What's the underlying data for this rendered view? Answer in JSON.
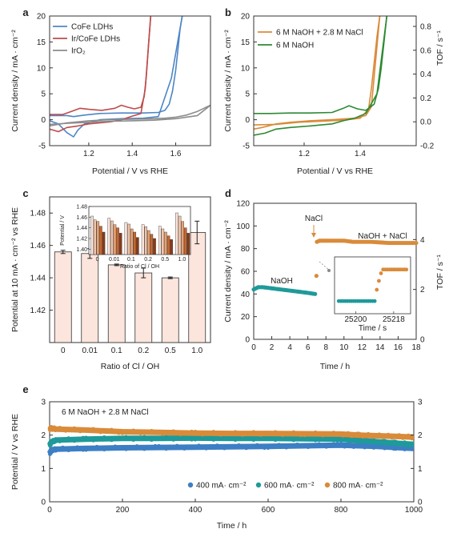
{
  "chart_data": [
    {
      "panel": "a",
      "type": "line",
      "xlabel": "Potential / V vs RHE",
      "ylabel": "Current density / mA · cm⁻²",
      "xlim": [
        1.02,
        1.76
      ],
      "ylim": [
        -5,
        20
      ],
      "xticks": [
        1.2,
        1.4,
        1.6
      ],
      "yticks": [
        -5,
        0,
        5,
        10,
        15,
        20
      ],
      "legend_position": "top-left",
      "series": [
        {
          "name": "CoFe LDHs",
          "color": "#4d86c6",
          "x": [
            1.02,
            1.1,
            1.13,
            1.18,
            1.25,
            1.35,
            1.45,
            1.52,
            1.55,
            1.57,
            1.585,
            1.6,
            1.61,
            1.62,
            1.63
          ],
          "y": [
            0.8,
            0.8,
            0.6,
            0.9,
            1.2,
            1.3,
            1.3,
            1.4,
            1.8,
            3.0,
            5.5,
            9.5,
            13.5,
            17.5,
            20
          ]
        },
        {
          "name": "CoFe LDHs return",
          "color": "#4d86c6",
          "x": [
            1.63,
            1.58,
            1.52,
            1.45,
            1.35,
            1.25,
            1.18,
            1.15,
            1.13,
            1.1,
            1.06,
            1.02
          ],
          "y": [
            20,
            8.0,
            0.6,
            0.3,
            0.2,
            0.0,
            -0.8,
            -2.0,
            -3.3,
            -2.5,
            -0.8,
            -0.2
          ]
        },
        {
          "name": "Ir/CoFe LDHs",
          "color": "#bf4b4b",
          "x": [
            1.02,
            1.08,
            1.12,
            1.16,
            1.2,
            1.26,
            1.32,
            1.35,
            1.38,
            1.41,
            1.44,
            1.455,
            1.465,
            1.475,
            1.485
          ],
          "y": [
            1.0,
            1.0,
            1.6,
            2.2,
            2.0,
            1.8,
            2.2,
            2.8,
            2.4,
            2.1,
            2.4,
            4.5,
            8.5,
            14.5,
            20
          ]
        },
        {
          "name": "Ir/CoFe LDHs return",
          "color": "#bf4b4b",
          "x": [
            1.485,
            1.46,
            1.44,
            1.4,
            1.35,
            1.3,
            1.2,
            1.15,
            1.1,
            1.06,
            1.02
          ],
          "y": [
            20,
            6.0,
            1.2,
            0.7,
            0.0,
            -0.4,
            -0.8,
            -1.2,
            -1.5,
            -2.3,
            -1.8
          ]
        },
        {
          "name": "IrO2",
          "color": "#8c8c8c",
          "x": [
            1.02,
            1.1,
            1.2,
            1.3,
            1.4,
            1.5,
            1.55,
            1.6,
            1.65,
            1.7,
            1.74,
            1.76
          ],
          "y": [
            -1.2,
            -0.6,
            -0.2,
            0.0,
            0.1,
            0.2,
            0.3,
            0.5,
            0.9,
            1.6,
            2.4,
            2.8
          ]
        },
        {
          "name": "IrO2 return",
          "color": "#8c8c8c",
          "x": [
            1.76,
            1.7,
            1.6,
            1.5,
            1.4,
            1.3,
            1.2,
            1.1,
            1.02
          ],
          "y": [
            2.8,
            0.8,
            0.2,
            -0.1,
            -0.2,
            -0.3,
            -0.5,
            -0.7,
            -0.9
          ]
        }
      ]
    },
    {
      "panel": "b",
      "type": "line",
      "xlabel": "Potential / V vs RHE",
      "ylabel": "Current density / mA · cm⁻²",
      "ylabel_right": "TOF / s⁻¹",
      "xlim": [
        1.02,
        1.6
      ],
      "ylim": [
        -5,
        20
      ],
      "xticks": [
        1.2,
        1.4
      ],
      "yticks": [
        -5,
        0,
        5,
        10,
        15,
        20
      ],
      "right_ticks": [
        -0.2,
        0.0,
        0.2,
        0.4,
        0.6,
        0.8
      ],
      "legend_position": "top-left",
      "series": [
        {
          "name": "6 M NaOH + 2.8 M NaCl",
          "color": "#d98b3a",
          "x": [
            1.02,
            1.1,
            1.18,
            1.26,
            1.34,
            1.4,
            1.43,
            1.44,
            1.45,
            1.46,
            1.47
          ],
          "y": [
            -1.0,
            -0.9,
            -0.5,
            -0.3,
            -0.1,
            0.3,
            2.0,
            6.0,
            11.0,
            16.0,
            20
          ]
        },
        {
          "name": "6 M NaOH + 2.8 M NaCl return",
          "color": "#d98b3a",
          "x": [
            1.47,
            1.44,
            1.42,
            1.38,
            1.3,
            1.22,
            1.15,
            1.1,
            1.05,
            1.02
          ],
          "y": [
            20,
            2.5,
            0.8,
            0.3,
            0.0,
            -0.2,
            -0.5,
            -0.8,
            -1.5,
            -1.8
          ]
        },
        {
          "name": "6 M NaOH",
          "color": "#2d8a32",
          "x": [
            1.02,
            1.08,
            1.15,
            1.22,
            1.3,
            1.34,
            1.36,
            1.39,
            1.42,
            1.45,
            1.465,
            1.475,
            1.485,
            1.495
          ],
          "y": [
            1.2,
            1.2,
            1.3,
            1.3,
            1.4,
            2.2,
            2.7,
            2.1,
            1.8,
            3.0,
            6.0,
            10.0,
            15.0,
            20
          ]
        },
        {
          "name": "6 M NaOH return",
          "color": "#2d8a32",
          "x": [
            1.495,
            1.46,
            1.42,
            1.38,
            1.34,
            1.3,
            1.22,
            1.15,
            1.1,
            1.06,
            1.02
          ],
          "y": [
            20,
            5.0,
            1.2,
            0.3,
            -0.2,
            -0.8,
            -1.2,
            -1.5,
            -1.8,
            -2.6,
            -3.0
          ]
        }
      ]
    },
    {
      "panel": "c",
      "type": "bar",
      "xlabel": "Ratio of Cl / OH",
      "ylabel": "Potential at 10 mA · cm⁻² vs RHE",
      "categories": [
        "0",
        "0.01",
        "0.1",
        "0.2",
        "0.5",
        "1.0"
      ],
      "values": [
        1.456,
        1.455,
        1.448,
        1.443,
        1.44,
        1.468
      ],
      "errors": [
        0.001,
        0.003,
        0.0005,
        0.003,
        0.0005,
        0.007
      ],
      "ylim": [
        1.4,
        1.49
      ],
      "yticks": [
        1.42,
        1.44,
        1.46,
        1.48
      ],
      "bar_color": "#fbe5dc",
      "inset": {
        "xlabel": "Ratio of Cl / OH",
        "ylabel": "Potential / V",
        "categories": [
          "0",
          "0.01",
          "0.1",
          "0.2",
          "0.5",
          "1.0"
        ],
        "ylim": [
          1.39,
          1.48
        ],
        "yticks": [
          1.4,
          1.42,
          1.44,
          1.46,
          1.48
        ],
        "series_colors": [
          "#fbe5dc",
          "#f2c5aa",
          "#e8a172",
          "#c8662e",
          "#8a3a17"
        ],
        "values": [
          [
            1.462,
            1.455,
            1.452,
            1.443,
            1.432
          ],
          [
            1.458,
            1.453,
            1.446,
            1.44,
            1.43
          ],
          [
            1.45,
            1.447,
            1.438,
            1.432,
            1.422
          ],
          [
            1.446,
            1.442,
            1.435,
            1.428,
            1.42
          ],
          [
            1.443,
            1.438,
            1.432,
            1.425,
            1.418
          ],
          [
            1.468,
            1.462,
            1.452,
            1.44,
            1.43
          ]
        ]
      }
    },
    {
      "panel": "d",
      "type": "scatter",
      "xlabel": "Time / h",
      "ylabel": "Current density / mA · cm⁻²",
      "ylabel_right": "TOF / s⁻¹",
      "xlim": [
        0,
        18
      ],
      "ylim": [
        0,
        120
      ],
      "xticks": [
        0,
        2,
        4,
        6,
        8,
        10,
        12,
        14,
        16,
        18
      ],
      "yticks": [
        0,
        20,
        40,
        60,
        80,
        100,
        120
      ],
      "right_ticks": [
        0,
        2,
        4
      ],
      "annotations": [
        "NaOH",
        "NaCl",
        "NaOH + NaCl"
      ],
      "series": [
        {
          "name": "NaOH",
          "color": "#1e9a9a",
          "x": [
            0,
            0.5,
            1,
            2,
            3,
            4,
            5,
            6,
            6.8
          ],
          "y": [
            44,
            46,
            46,
            45,
            44,
            43,
            42,
            41,
            40
          ]
        },
        {
          "name": "NaOH + NaCl",
          "color": "#d98b3a",
          "x": [
            7,
            7.3,
            8,
            9,
            10,
            11,
            12,
            13,
            14,
            15,
            16,
            17,
            18
          ],
          "y": [
            86,
            87,
            87,
            87,
            87,
            86,
            86,
            86,
            85.5,
            85,
            85,
            85,
            85
          ]
        },
        {
          "name": "transition",
          "color": "#d98b3a",
          "x": [
            6.95
          ],
          "y": [
            56
          ]
        }
      ],
      "inset": {
        "xlabel": "Time / s",
        "xticks": [
          25200,
          25218
        ],
        "xlim": [
          25190,
          25226
        ],
        "series": [
          {
            "name": "NaOH",
            "color": "#1e9a9a",
            "x": [
              25192,
              25193,
              25194,
              25195,
              25196,
              25197,
              25198,
              25199,
              25200,
              25201,
              25202,
              25203,
              25204,
              25205,
              25206,
              25207,
              25208,
              25209
            ],
            "y": [
              40,
              40,
              40,
              40,
              40,
              40,
              40,
              40,
              40,
              40,
              40,
              40,
              40,
              40,
              40,
              40,
              40,
              40
            ]
          },
          {
            "name": "NaOH + NaCl",
            "color": "#d98b3a",
            "x": [
              25210,
              25211,
              25212,
              25213,
              25214,
              25215,
              25216,
              25217,
              25218,
              25219,
              25220,
              25221,
              25222,
              25223,
              25224
            ],
            "y": [
              49,
              56,
              62,
              65,
              65,
              65,
              65,
              65,
              65,
              65,
              65,
              65,
              65,
              65,
              65
            ]
          }
        ]
      }
    },
    {
      "panel": "e",
      "type": "line",
      "title": "6 M NaOH + 2.8 M NaCl",
      "xlabel": "Time / h",
      "ylabel": "Potential / V vs RHE",
      "xlim": [
        0,
        1000
      ],
      "ylim": [
        0,
        3
      ],
      "xticks": [
        0,
        200,
        400,
        600,
        800,
        1000
      ],
      "yticks": [
        0,
        1,
        2,
        3
      ],
      "legend_position": "bottom-right",
      "series": [
        {
          "name": "400 mA· cm⁻²",
          "color": "#3d7fc4",
          "x": [
            0,
            5,
            20,
            100,
            200,
            300,
            400,
            500,
            600,
            700,
            800,
            850,
            900,
            950,
            1000
          ],
          "y": [
            1.45,
            1.55,
            1.58,
            1.6,
            1.62,
            1.63,
            1.64,
            1.65,
            1.66,
            1.68,
            1.7,
            1.68,
            1.66,
            1.63,
            1.6
          ]
        },
        {
          "name": "600 mA· cm⁻²",
          "color": "#1e9a9a",
          "x": [
            0,
            5,
            20,
            100,
            200,
            300,
            400,
            500,
            600,
            700,
            800,
            850,
            900,
            950,
            1000
          ],
          "y": [
            1.7,
            1.8,
            1.85,
            1.88,
            1.9,
            1.9,
            1.91,
            1.9,
            1.9,
            1.89,
            1.88,
            1.84,
            1.8,
            1.76,
            1.72
          ]
        },
        {
          "name": "800 mA· cm⁻²",
          "color": "#d98b3a",
          "x": [
            0,
            5,
            20,
            100,
            200,
            300,
            400,
            500,
            600,
            700,
            800,
            850,
            900,
            950,
            1000
          ],
          "y": [
            2.2,
            2.2,
            2.18,
            2.15,
            2.1,
            2.08,
            2.06,
            2.05,
            2.05,
            2.04,
            2.03,
            2.0,
            1.98,
            1.96,
            1.94
          ]
        }
      ]
    }
  ],
  "labels": {
    "a": "a",
    "b": "b",
    "c": "c",
    "d": "d",
    "e": "e",
    "a_ylabel": "Current density / mA · cm⁻²",
    "b_ylabel": "Current density / mA · cm⁻²",
    "b_ylabel_right": "TOF / s⁻¹",
    "c_ylabel": "Potential at 10 mA · cm⁻² vs RHE",
    "d_ylabel": "Current density / mA · cm⁻²",
    "d_ylabel_right": "TOF / s⁻¹",
    "e_ylabel": "Potential / V vs RHE",
    "e_title": "6 M NaOH + 2.8 M NaCl",
    "d_inset_xlabel": "Time / s",
    "c_inset_xlabel": "Ratio of Cl / OH",
    "c_inset_ylabel": "Potential / V",
    "a_legend": [
      "CoFe LDHs",
      "Ir/CoFe LDHs",
      "IrO₂"
    ],
    "b_legend": [
      "6 M NaOH + 2.8 M NaCl",
      "6 M NaOH"
    ],
    "d_annot_naoh": "NaOH",
    "d_annot_nacl": "NaCl",
    "d_annot_mix": "NaOH + NaCl",
    "e_legend": [
      "400 mA· cm⁻²",
      "600 mA· cm⁻²",
      "800 mA· cm⁻²"
    ]
  }
}
